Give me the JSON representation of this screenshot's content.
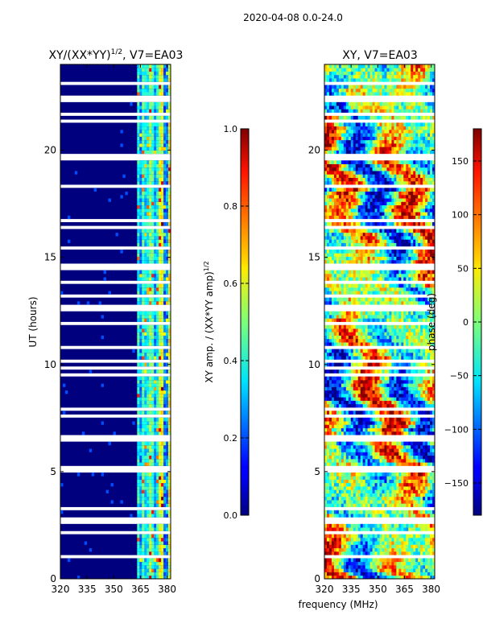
{
  "suptitle": "2020-04-08 0.0-24.0",
  "chart_data": [
    {
      "type": "heatmap",
      "title_main": "XY/(XX*YY)",
      "title_power": "1/2",
      "title_suffix": ", V7=EA03",
      "xlabel": "",
      "ylabel": "UT (hours)",
      "xlim": [
        320,
        382
      ],
      "ylim": [
        0,
        24
      ],
      "xticks": [
        320,
        335,
        350,
        365,
        380
      ],
      "yticks": [
        0,
        5,
        10,
        15,
        20
      ],
      "colorbar": {
        "label": "XY amp. / (XX*YY amp)",
        "label_power": "1/2",
        "range": [
          0.0,
          1.0
        ],
        "ticks": [
          "0.0",
          "0.2",
          "0.4",
          "0.6",
          "0.8",
          "1.0"
        ],
        "colormap": "jet"
      }
    },
    {
      "type": "heatmap",
      "title": "XY, V7=EA03",
      "xlabel": "frequency (MHz)",
      "ylabel": "",
      "xlim": [
        320,
        382
      ],
      "ylim": [
        0,
        24
      ],
      "xticks": [
        320,
        335,
        350,
        365,
        380
      ],
      "yticks": [
        0,
        5,
        10,
        15,
        20
      ],
      "colorbar": {
        "label": "phase (deg)",
        "range": [
          -180,
          180
        ],
        "ticks": [
          "150",
          "100",
          "50",
          "0",
          "−50",
          "−100",
          "−150"
        ],
        "tick_values": [
          150,
          100,
          50,
          0,
          -50,
          -100,
          -150
        ],
        "colormap": "jet"
      }
    }
  ]
}
